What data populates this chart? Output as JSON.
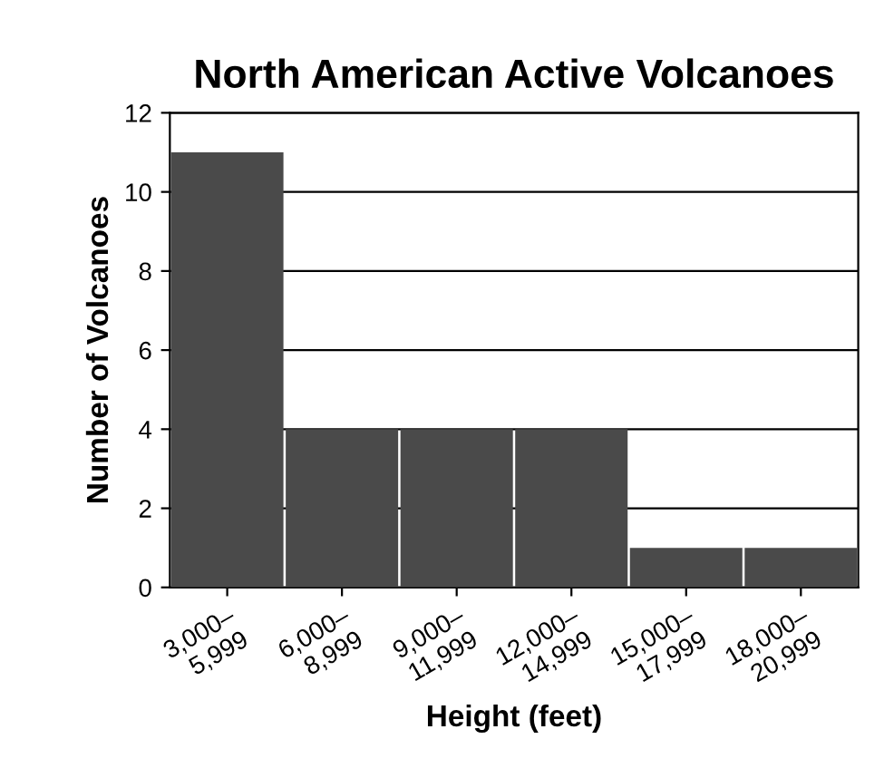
{
  "chart_data": {
    "type": "bar",
    "title": "North American Active Volcanoes",
    "xlabel": "Height (feet)",
    "ylabel": "Number of Volcanoes",
    "categories": [
      "3,000–\n5,999",
      "6,000–\n8,999",
      "9,000–\n11,999",
      "12,000–\n14,999",
      "15,000–\n17,999",
      "18,000–\n20,999"
    ],
    "values": [
      11,
      4,
      4,
      4,
      1,
      1
    ],
    "color": "#4a4a4a",
    "ylim": [
      0,
      12
    ],
    "yticks": [
      0,
      2,
      4,
      6,
      8,
      10,
      12
    ],
    "grid": "y"
  }
}
